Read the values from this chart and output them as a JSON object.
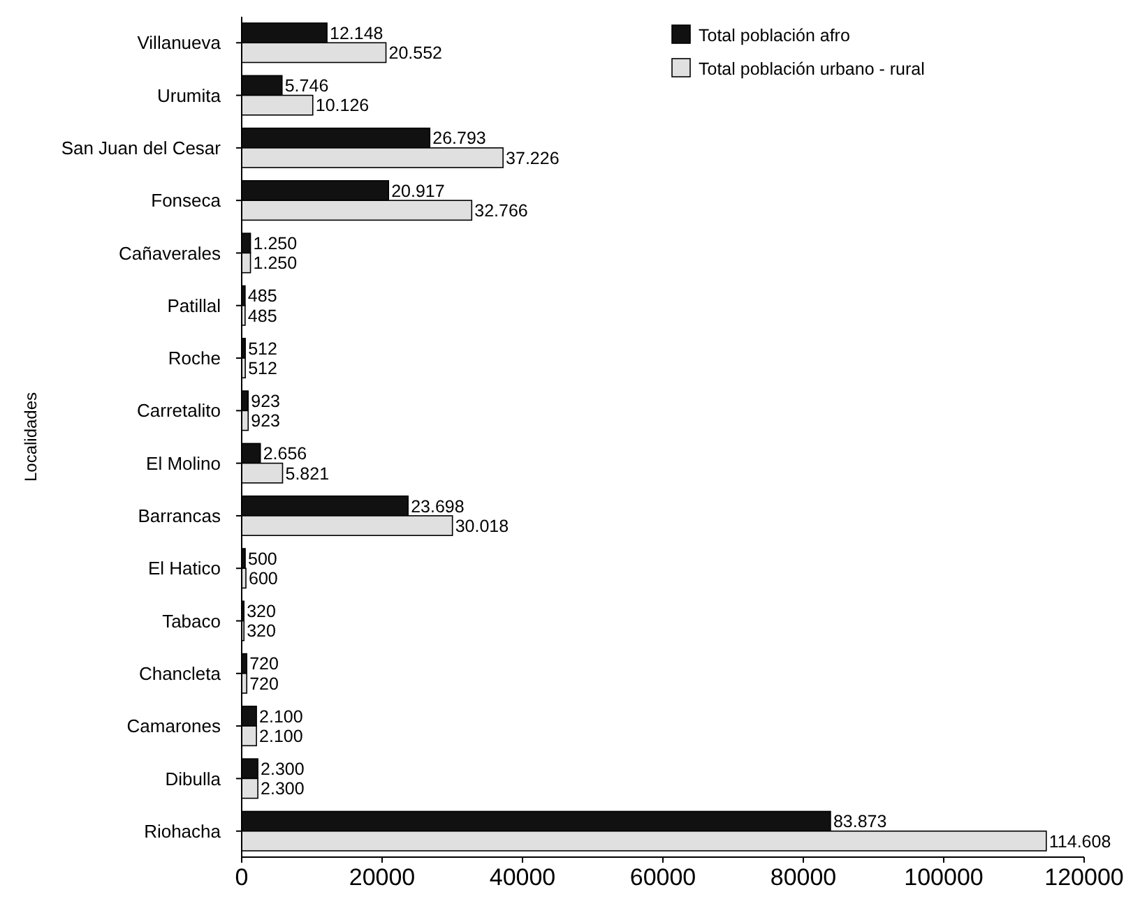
{
  "chart_data": {
    "type": "bar",
    "orientation": "horizontal",
    "ylabel": "Localidades",
    "categories": [
      "Villanueva",
      "Urumita",
      "San Juan del Cesar",
      "Fonseca",
      "Cañaverales",
      "Patillal",
      "Roche",
      "Carretalito",
      "El Molino",
      "Barrancas",
      "El Hatico",
      "Tabaco",
      "Chancleta",
      "Camarones",
      "Dibulla",
      "Riohacha"
    ],
    "series": [
      {
        "name": "Total población afro",
        "color": "#111111",
        "values": [
          12148,
          5746,
          26793,
          20917,
          1250,
          485,
          512,
          923,
          2656,
          23698,
          500,
          320,
          720,
          2100,
          2300,
          83873
        ],
        "value_labels": [
          "12.148",
          "5.746",
          "26.793",
          "20.917",
          "1.250",
          "485",
          "512",
          "923",
          "2.656",
          "23.698",
          "500",
          "320",
          "720",
          "2.100",
          "2.300",
          "83.873"
        ]
      },
      {
        "name": "Total población urbano - rural",
        "color": "#e0e0e0",
        "values": [
          20552,
          10126,
          37226,
          32766,
          1250,
          485,
          512,
          923,
          5821,
          30018,
          600,
          320,
          720,
          2100,
          2300,
          114608
        ],
        "value_labels": [
          "20.552",
          "10.126",
          "37.226",
          "32.766",
          "1.250",
          "485",
          "512",
          "923",
          "5.821",
          "30.018",
          "600",
          "320",
          "720",
          "2.100",
          "2.300",
          "114.608"
        ]
      }
    ],
    "xlim": [
      0,
      120000
    ],
    "xticks": [
      0,
      20000,
      40000,
      60000,
      80000,
      100000,
      120000
    ],
    "legend": "top right",
    "grid": false
  }
}
